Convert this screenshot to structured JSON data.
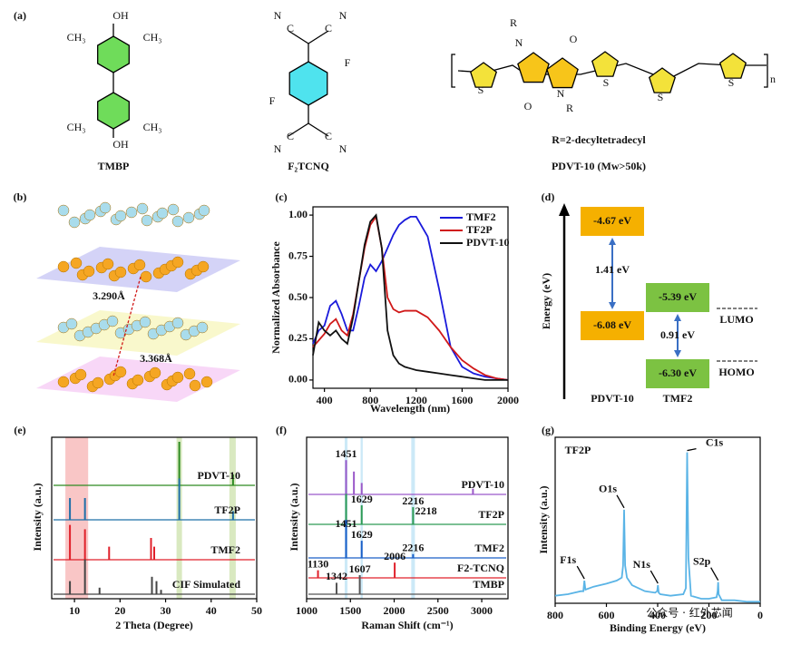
{
  "panel_labels": [
    "(a)",
    "(b)",
    "(c)",
    "(d)",
    "(e)",
    "(f)",
    "(g)"
  ],
  "structures": {
    "tmbp": {
      "name": "TMBP",
      "groups": [
        "OH",
        "CH₃",
        "CH₃",
        "CH₃",
        "CH₃",
        "OH"
      ]
    },
    "f2tcnq": {
      "name": "F₂TCNQ",
      "groups": [
        "N",
        "C",
        "C",
        "N",
        "F",
        "F",
        "N",
        "C",
        "C",
        "N"
      ]
    },
    "pdvt": {
      "substituent": "R=2-decyltetradecyl",
      "name": "PDVT-10 (Mw>50k)",
      "atoms": [
        "R",
        "N",
        "O",
        "O",
        "N",
        "R",
        "S",
        "S",
        "S",
        "S",
        "n"
      ]
    }
  },
  "crystal": {
    "distances": [
      "3.290Å",
      "3.368Å"
    ]
  },
  "energy_diagram": {
    "y_label": "Energy (eV)",
    "levels": [
      "-4.67 eV",
      "-6.08 eV",
      "-5.39 eV",
      "-6.30 eV"
    ],
    "gaps": [
      "1.41 eV",
      "0.91 eV"
    ],
    "materials": [
      "PDVT-10",
      "TMF2"
    ],
    "legend": [
      "LUMO",
      "HOMO"
    ]
  },
  "chart_data": [
    {
      "type": "line",
      "x_label": "Wavelength (nm)",
      "y_label": "Normalized Absorbance",
      "x": [
        300,
        350,
        400,
        450,
        500,
        550,
        600,
        650,
        700,
        750,
        800,
        850,
        900,
        950,
        1000,
        1050,
        1100,
        1150,
        1200,
        1300,
        1400,
        1500,
        1600,
        1700,
        1800,
        1900,
        2000
      ],
      "series": [
        {
          "name": "TMF2",
          "color": "#1a1adb",
          "values": [
            0.22,
            0.3,
            0.33,
            0.45,
            0.48,
            0.4,
            0.3,
            0.3,
            0.45,
            0.62,
            0.7,
            0.66,
            0.72,
            0.8,
            0.88,
            0.94,
            0.97,
            0.99,
            0.99,
            0.87,
            0.55,
            0.2,
            0.08,
            0.04,
            0.02,
            0.01,
            0.0
          ]
        },
        {
          "name": "TF2P",
          "color": "#d01818",
          "values": [
            0.2,
            0.24,
            0.28,
            0.34,
            0.37,
            0.3,
            0.27,
            0.4,
            0.6,
            0.8,
            0.94,
            0.99,
            0.8,
            0.5,
            0.43,
            0.41,
            0.42,
            0.42,
            0.42,
            0.38,
            0.3,
            0.2,
            0.12,
            0.07,
            0.03,
            0.01,
            0.0
          ]
        },
        {
          "name": "PDVT-10",
          "color": "#111111",
          "values": [
            0.15,
            0.35,
            0.3,
            0.27,
            0.3,
            0.25,
            0.22,
            0.38,
            0.6,
            0.82,
            0.96,
            1.0,
            0.8,
            0.3,
            0.15,
            0.1,
            0.08,
            0.07,
            0.06,
            0.05,
            0.04,
            0.03,
            0.02,
            0.01,
            0.0,
            0.0,
            0.0
          ]
        }
      ],
      "xlim": [
        300,
        2000
      ],
      "xticks": [
        400,
        800,
        1200,
        1600,
        2000
      ],
      "ylim": [
        -0.05,
        1.05
      ],
      "yticks": [
        {
          "value": 0,
          "label": "0.00"
        },
        {
          "value": 0.25,
          "label": "0.25"
        },
        {
          "value": 0.5,
          "label": "0.50"
        },
        {
          "value": 0.75,
          "label": "0.75"
        },
        {
          "value": 1,
          "label": "1.00"
        }
      ],
      "legend": "upper right"
    },
    {
      "type": "stick",
      "x_label": "2 Theta (Degree)",
      "y_label": "Intensity (a.u.)",
      "series": [
        {
          "name": "PDVT-10",
          "color": "#2e8b22",
          "x": [
            33,
            44.8
          ],
          "values": [
            1.0,
            0.25
          ]
        },
        {
          "name": "TF2P",
          "color": "#1f6fa8",
          "x": [
            9,
            12.3,
            33,
            44.8
          ],
          "values": [
            0.5,
            0.5,
            0.95,
            0.2
          ]
        },
        {
          "name": "TMF2",
          "color": "#e0202a",
          "x": [
            9,
            12.3,
            17.6,
            26.8,
            27.5
          ],
          "values": [
            0.8,
            0.7,
            0.3,
            0.5,
            0.3
          ]
        },
        {
          "name": "CIF Simulated",
          "color": "#444444",
          "x": [
            9,
            12.3,
            15.5,
            27,
            28,
            29
          ],
          "values": [
            0.3,
            0.8,
            0.15,
            0.4,
            0.3,
            0.1
          ]
        }
      ],
      "highlights": [
        {
          "range": [
            8,
            13
          ],
          "color": "#f7b8b8"
        },
        {
          "range": [
            32.4,
            33.6
          ],
          "color": "#cfe3b0"
        },
        {
          "range": [
            44,
            45.4
          ],
          "color": "#cfe3b0"
        }
      ],
      "xlim": [
        5,
        50
      ],
      "xticks": [
        10,
        20,
        30,
        40,
        50
      ]
    },
    {
      "type": "stick",
      "x_label": "Raman Shift (cm⁻¹)",
      "y_label": "Intensity (a.u.)",
      "series": [
        {
          "name": "PDVT-10",
          "color": "#9b59c9",
          "x": [
            1451,
            1540,
            1629,
            2900
          ],
          "values": [
            0.9,
            0.6,
            0.3,
            0.15
          ]
        },
        {
          "name": "TF2P",
          "color": "#2e9b55",
          "x": [
            1451,
            1629,
            2216
          ],
          "values": [
            0.8,
            0.5,
            0.45
          ]
        },
        {
          "name": "TMF2",
          "color": "#1a5fc8",
          "x": [
            1451,
            1629,
            2216
          ],
          "values": [
            1.0,
            0.45,
            0.1
          ]
        },
        {
          "name": "F2-TCNQ",
          "color": "#e0202a",
          "x": [
            1130,
            2006
          ],
          "values": [
            0.2,
            0.4
          ]
        },
        {
          "name": "TMBP",
          "color": "#555555",
          "x": [
            1342,
            1607
          ],
          "values": [
            0.3,
            0.5
          ]
        }
      ],
      "annotations": [
        {
          "x": 1451,
          "series": 0
        },
        {
          "x": 1629,
          "series": 1
        },
        {
          "x": 2216,
          "series": 1
        },
        {
          "x": 2218,
          "series": 1
        },
        {
          "x": 1451,
          "series": 1
        },
        {
          "x": 1629,
          "series": 2
        },
        {
          "x": 2216,
          "series": 2
        },
        {
          "x": 1130,
          "series": 3
        },
        {
          "x": 2006,
          "series": 3
        },
        {
          "x": 1342,
          "series": 4
        },
        {
          "x": 1607,
          "series": 4
        }
      ],
      "highlights": [
        {
          "range": [
            1435,
            1467
          ],
          "color": "#bfe3f5"
        },
        {
          "range": [
            1617,
            1641
          ],
          "color": "#bfe3f5"
        },
        {
          "range": [
            2195,
            2237
          ],
          "color": "#bfe3f5"
        }
      ],
      "xlim": [
        1000,
        3300
      ],
      "xticks": [
        1000,
        1500,
        2000,
        2500,
        3000
      ]
    },
    {
      "type": "line",
      "x_label": "Binding Energy (eV)",
      "y_label": "Intensity (a.u.)",
      "label": "TF2P",
      "x": [
        800,
        750,
        700,
        690,
        686,
        682,
        650,
        600,
        560,
        540,
        535,
        531,
        527,
        520,
        500,
        450,
        410,
        402,
        399,
        396,
        390,
        350,
        300,
        290,
        285,
        280,
        270,
        230,
        200,
        170,
        166,
        164,
        162,
        150,
        100,
        50,
        0
      ],
      "series": [
        {
          "name": "TF2P",
          "color": "#5ab4e6",
          "values": [
            0.05,
            0.06,
            0.08,
            0.08,
            0.15,
            0.09,
            0.11,
            0.13,
            0.15,
            0.17,
            0.25,
            0.62,
            0.25,
            0.17,
            0.12,
            0.08,
            0.07,
            0.08,
            0.12,
            0.07,
            0.06,
            0.05,
            0.06,
            0.1,
            1.0,
            0.3,
            0.05,
            0.03,
            0.03,
            0.04,
            0.08,
            0.14,
            0.06,
            0.02,
            0.02,
            0.01,
            0.01
          ]
        }
      ],
      "annotations": [
        {
          "text": "F1s",
          "x": 686
        },
        {
          "text": "O1s",
          "x": 531
        },
        {
          "text": "N1s",
          "x": 399
        },
        {
          "text": "C1s",
          "x": 285
        },
        {
          "text": "S2p",
          "x": 164
        }
      ],
      "xlim": [
        800,
        0
      ],
      "xticks": [
        800,
        600,
        400,
        200,
        0
      ],
      "ylim": [
        0,
        1.1
      ]
    }
  ],
  "watermark": "公众号 · 红外芯闻"
}
